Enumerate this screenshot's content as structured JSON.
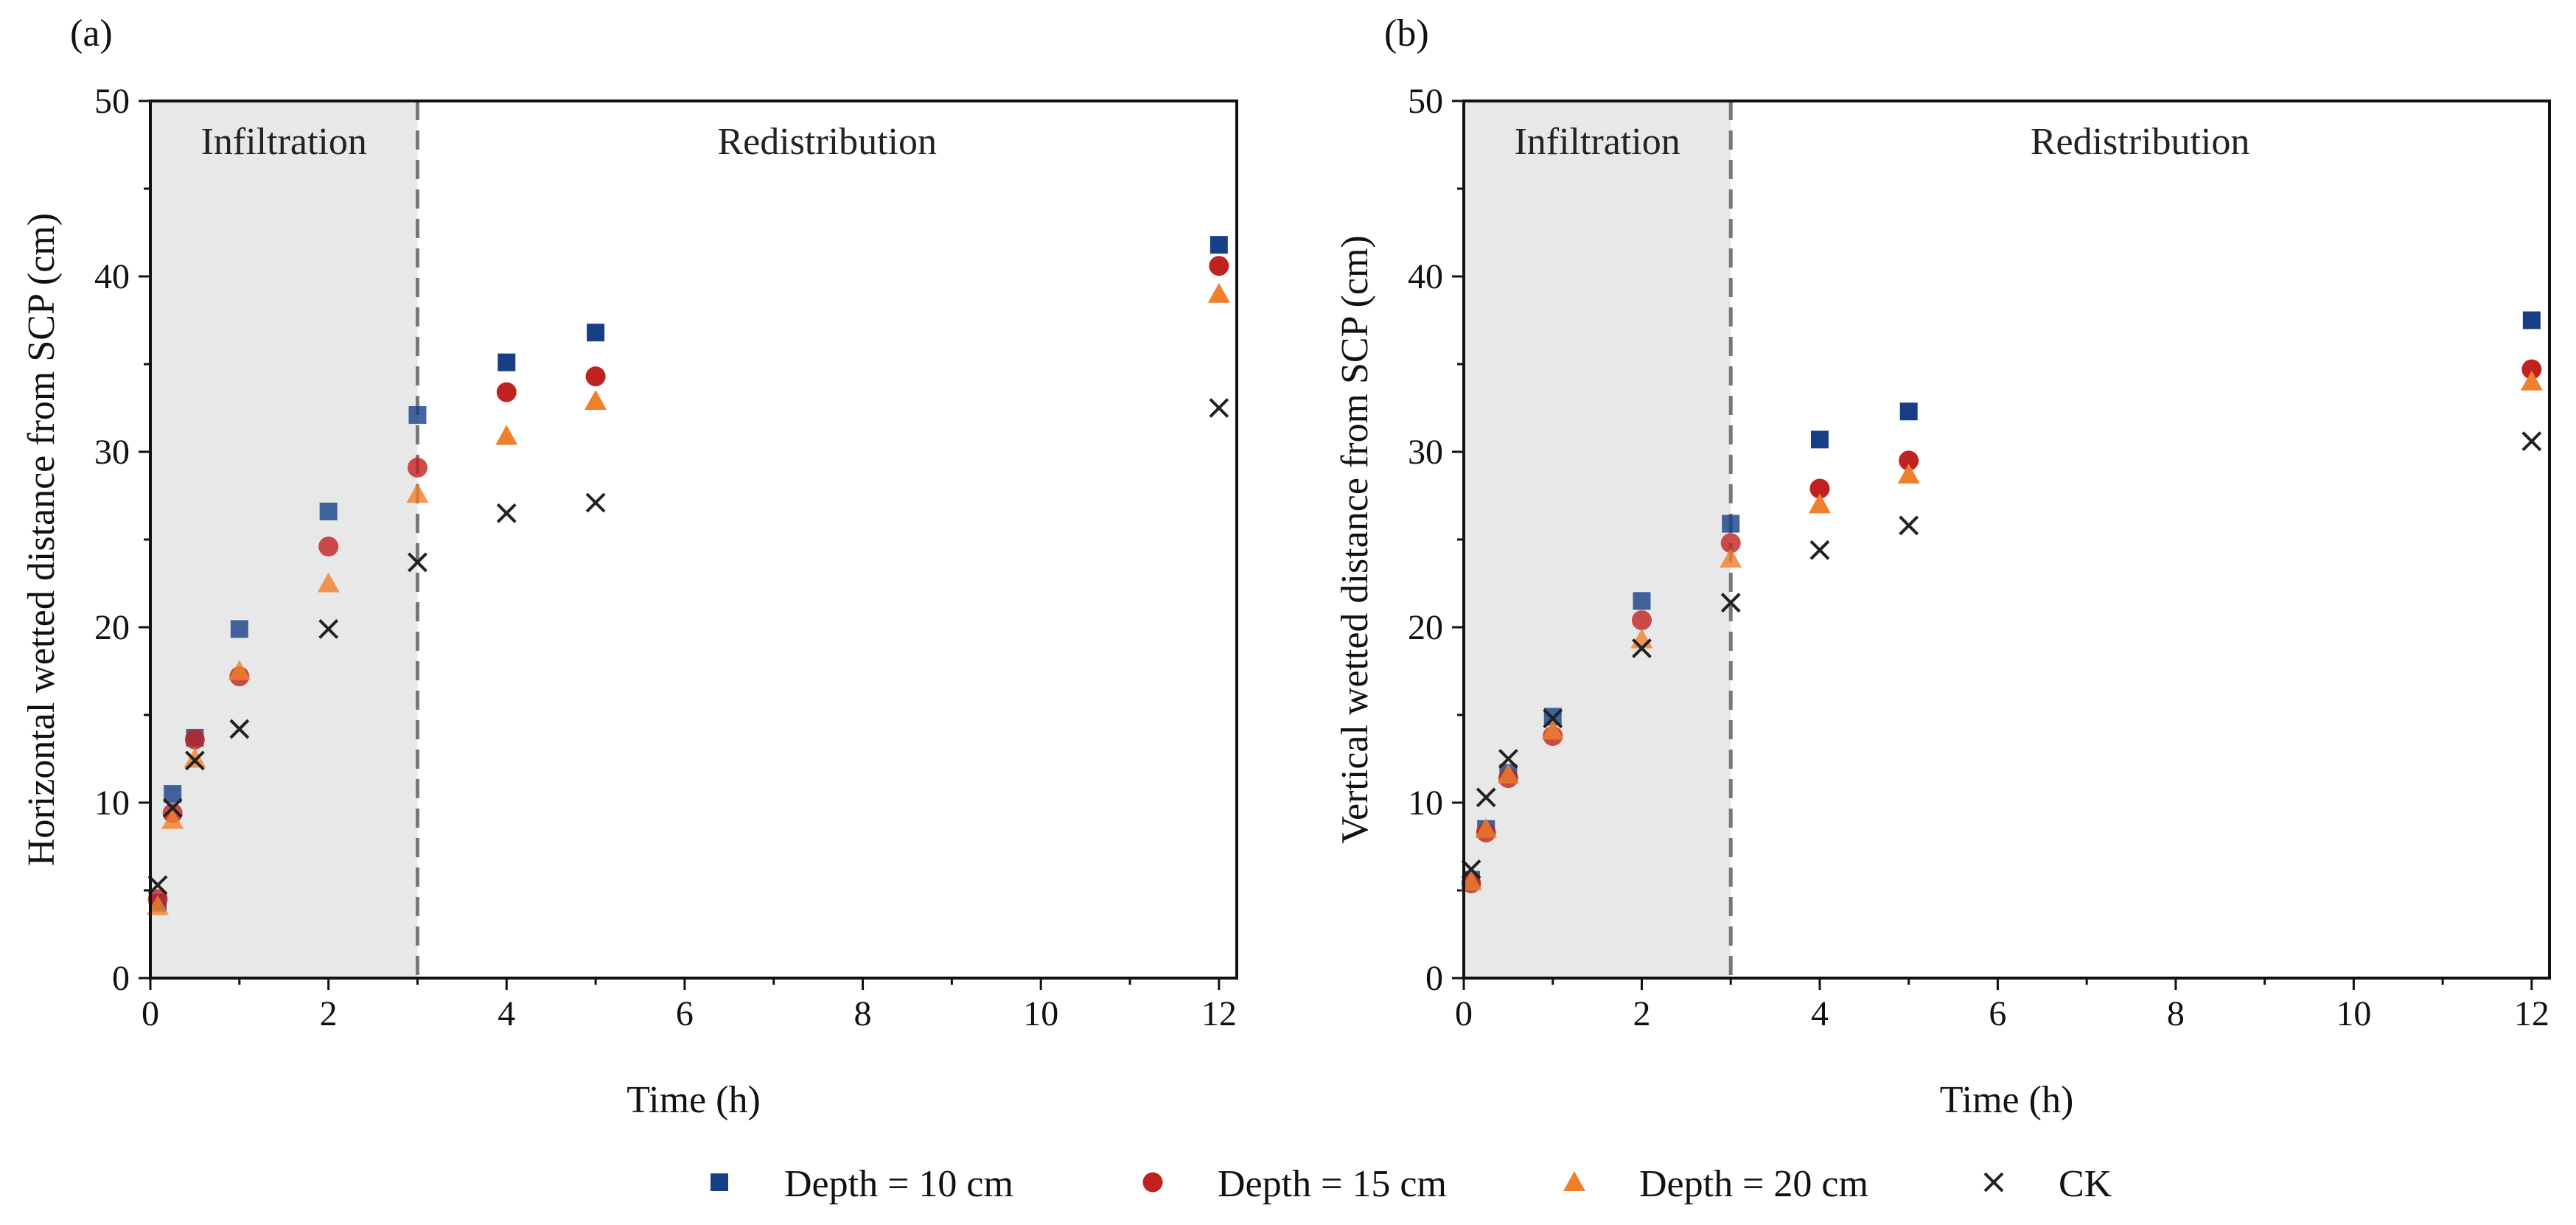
{
  "chart_data": [
    {
      "type": "scatter",
      "panel_label": "(a)",
      "xlabel": "Time (h)",
      "ylabel": "Horizontal wetted distance from SCP (cm)",
      "xlim": [
        0,
        12.2
      ],
      "ylim": [
        0,
        50
      ],
      "xticks": [
        0,
        2,
        4,
        6,
        8,
        10,
        12
      ],
      "yticks": [
        0,
        10,
        20,
        30,
        40,
        50
      ],
      "shaded_region": {
        "x_from": 0,
        "x_to": 3,
        "color": "#e8e8e8"
      },
      "divider_x": 3,
      "region_labels": [
        "Infiltration",
        "Redistribution"
      ],
      "grid": false,
      "series": [
        {
          "name": "Depth = 10 cm",
          "marker": "square",
          "color": "#173f86",
          "x": [
            0.083,
            0.25,
            0.5,
            1,
            2,
            3,
            4,
            5,
            12
          ],
          "y": [
            4.3,
            10.5,
            13.7,
            19.9,
            26.6,
            32.1,
            35.1,
            36.8,
            41.8
          ]
        },
        {
          "name": "Depth = 15 cm",
          "marker": "circle",
          "color": "#c0221f",
          "x": [
            0.083,
            0.25,
            0.5,
            1,
            2,
            3,
            4,
            5,
            12
          ],
          "y": [
            4.5,
            9.4,
            13.6,
            17.2,
            24.6,
            29.1,
            33.4,
            34.3,
            40.6
          ]
        },
        {
          "name": "Depth = 20 cm",
          "marker": "triangle",
          "color": "#f07f2b",
          "x": [
            0.083,
            0.25,
            0.5,
            1,
            2,
            3,
            4,
            5,
            12
          ],
          "y": [
            4.1,
            9.0,
            12.5,
            17.5,
            22.5,
            27.6,
            30.9,
            32.9,
            39.0
          ]
        },
        {
          "name": "CK",
          "marker": "x",
          "color": "#222222",
          "x": [
            0.083,
            0.25,
            0.5,
            1,
            2,
            3,
            4,
            5,
            12
          ],
          "y": [
            5.3,
            9.7,
            12.4,
            14.2,
            19.9,
            23.7,
            26.5,
            27.1,
            32.5
          ]
        }
      ]
    },
    {
      "type": "scatter",
      "panel_label": "(b)",
      "xlabel": "Time (h)",
      "ylabel": "Vertical wetted distance from SCP (cm)",
      "xlim": [
        0,
        12.2
      ],
      "ylim": [
        0,
        50
      ],
      "xticks": [
        0,
        2,
        4,
        6,
        8,
        10,
        12
      ],
      "yticks": [
        0,
        10,
        20,
        30,
        40,
        50
      ],
      "shaded_region": {
        "x_from": 0,
        "x_to": 3,
        "color": "#e8e8e8"
      },
      "divider_x": 3,
      "region_labels": [
        "Infiltration",
        "Redistribution"
      ],
      "grid": false,
      "series": [
        {
          "name": "Depth = 10 cm",
          "marker": "square",
          "color": "#173f86",
          "x": [
            0.083,
            0.25,
            0.5,
            1,
            2,
            3,
            4,
            5,
            12
          ],
          "y": [
            5.6,
            8.5,
            11.7,
            14.9,
            21.5,
            25.9,
            30.7,
            32.3,
            37.5
          ]
        },
        {
          "name": "Depth = 15 cm",
          "marker": "circle",
          "color": "#c0221f",
          "x": [
            0.083,
            0.25,
            0.5,
            1,
            2,
            3,
            4,
            5,
            12
          ],
          "y": [
            5.4,
            8.3,
            11.4,
            13.8,
            20.4,
            24.8,
            27.9,
            29.5,
            34.7
          ]
        },
        {
          "name": "Depth = 20 cm",
          "marker": "triangle",
          "color": "#f07f2b",
          "x": [
            0.083,
            0.25,
            0.5,
            1,
            2,
            3,
            4,
            5,
            12
          ],
          "y": [
            5.5,
            8.5,
            11.6,
            14.1,
            19.3,
            23.9,
            27.0,
            28.7,
            34.0
          ]
        },
        {
          "name": "CK",
          "marker": "x",
          "color": "#222222",
          "x": [
            0.083,
            0.25,
            0.5,
            1,
            2,
            3,
            4,
            5,
            12
          ],
          "y": [
            6.2,
            10.3,
            12.5,
            14.8,
            18.8,
            21.4,
            24.4,
            25.8,
            30.6
          ]
        }
      ]
    }
  ],
  "legend": {
    "placement": "bottom-center",
    "items": [
      {
        "label": "Depth = 10 cm",
        "marker": "square",
        "color": "#173f86"
      },
      {
        "label": "Depth = 15 cm",
        "marker": "circle",
        "color": "#c0221f"
      },
      {
        "label": "Depth = 20 cm",
        "marker": "triangle",
        "color": "#f07f2b"
      },
      {
        "label": "CK",
        "marker": "x",
        "color": "#222222"
      }
    ]
  }
}
